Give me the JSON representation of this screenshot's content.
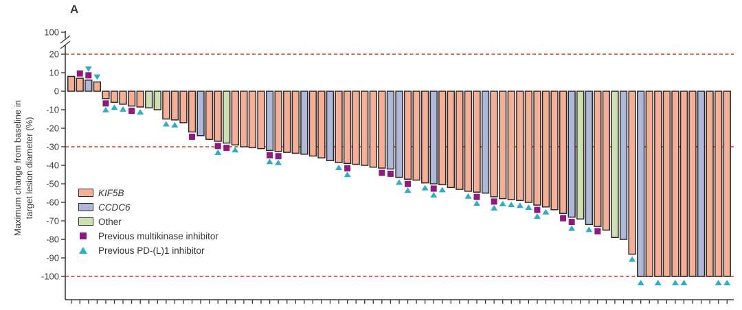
{
  "panel_label": "A",
  "ylabel": {
    "line1": "Maximum change from baseline in",
    "line2": "target lesion diameter (%)"
  },
  "legend": {
    "kif5b": "KIF5B",
    "ccdc6": "CCDC6",
    "other": "Other",
    "mki": "Previous multikinase inhibitor",
    "pd": "Previous PD-(L)1 inhibitor"
  },
  "colors": {
    "kif5b": "#f4b096",
    "ccdc6": "#aeb9d9",
    "other": "#cce0b2",
    "square": "#8f1a7e",
    "triangle": "#2baec6",
    "refline": "#d94f3d",
    "outline": "#2e2627",
    "axis": "#3b3b3b"
  },
  "chart_data": {
    "type": "bar",
    "subtype": "waterfall",
    "title": "",
    "xlabel": "",
    "ylabel": "Maximum change from baseline in target lesion diameter (%)",
    "y_ticks": [
      100,
      20,
      10,
      0,
      -10,
      -20,
      -30,
      -40,
      -50,
      -60,
      -70,
      -80,
      -90,
      -100
    ],
    "axis_break_between": [
      20,
      100
    ],
    "reference_lines": [
      20,
      -30,
      -100
    ],
    "grid": false,
    "legend_position": "inside-left",
    "groups": {
      "K": "KIF5B",
      "C": "CCDC6",
      "O": "Other"
    },
    "marker_codes": {
      "s": "Previous multikinase inhibitor",
      "t": "Previous PD-(L)1 inhibitor"
    },
    "bars": [
      [
        8,
        "K",
        ""
      ],
      [
        7,
        "K",
        "s"
      ],
      [
        6,
        "C",
        "st"
      ],
      [
        5,
        "K",
        "t"
      ],
      [
        -4,
        "K",
        "st"
      ],
      [
        -6,
        "K",
        "t"
      ],
      [
        -7,
        "K",
        "t"
      ],
      [
        -8,
        "K",
        "s"
      ],
      [
        -8.5,
        "K",
        "t"
      ],
      [
        -9,
        "O",
        ""
      ],
      [
        -10,
        "O",
        ""
      ],
      [
        -15,
        "K",
        "t"
      ],
      [
        -15.5,
        "K",
        "t"
      ],
      [
        -17,
        "K",
        ""
      ],
      [
        -22,
        "K",
        "s"
      ],
      [
        -24,
        "C",
        ""
      ],
      [
        -26,
        "K",
        ""
      ],
      [
        -27,
        "K",
        "st"
      ],
      [
        -28,
        "O",
        "s"
      ],
      [
        -29,
        "K",
        "t"
      ],
      [
        -30,
        "K",
        ""
      ],
      [
        -30.5,
        "K",
        ""
      ],
      [
        -31,
        "K",
        ""
      ],
      [
        -32,
        "C",
        "st"
      ],
      [
        -32.5,
        "K",
        "st"
      ],
      [
        -33,
        "K",
        ""
      ],
      [
        -33.5,
        "K",
        ""
      ],
      [
        -34,
        "C",
        ""
      ],
      [
        -35,
        "K",
        ""
      ],
      [
        -36,
        "K",
        ""
      ],
      [
        -37.5,
        "C",
        ""
      ],
      [
        -38.5,
        "K",
        "t"
      ],
      [
        -39,
        "K",
        "st"
      ],
      [
        -39.5,
        "K",
        ""
      ],
      [
        -40,
        "K",
        ""
      ],
      [
        -41,
        "K",
        ""
      ],
      [
        -41.5,
        "K",
        "s"
      ],
      [
        -42,
        "C",
        "s"
      ],
      [
        -46.5,
        "C",
        "t"
      ],
      [
        -47.5,
        "K",
        "st"
      ],
      [
        -48,
        "K",
        ""
      ],
      [
        -49.5,
        "K",
        "t"
      ],
      [
        -50,
        "C",
        "st"
      ],
      [
        -50.5,
        "K",
        "t"
      ],
      [
        -52,
        "K",
        ""
      ],
      [
        -53,
        "K",
        ""
      ],
      [
        -54,
        "K",
        "t"
      ],
      [
        -54.5,
        "K",
        "st"
      ],
      [
        -55,
        "C",
        ""
      ],
      [
        -57,
        "K",
        "st"
      ],
      [
        -58,
        "K",
        "t"
      ],
      [
        -58.5,
        "K",
        "t"
      ],
      [
        -59,
        "K",
        "t"
      ],
      [
        -60,
        "K",
        "t"
      ],
      [
        -61.5,
        "K",
        "st"
      ],
      [
        -62.5,
        "K",
        "t"
      ],
      [
        -64,
        "K",
        ""
      ],
      [
        -66,
        "K",
        "s"
      ],
      [
        -68,
        "C",
        "st"
      ],
      [
        -69,
        "O",
        ""
      ],
      [
        -72,
        "C",
        "t"
      ],
      [
        -73,
        "K",
        "s"
      ],
      [
        -75,
        "K",
        ""
      ],
      [
        -79,
        "O",
        ""
      ],
      [
        -80,
        "C",
        ""
      ],
      [
        -88,
        "K",
        "t"
      ],
      [
        -100,
        "C",
        "t"
      ],
      [
        -100,
        "K",
        ""
      ],
      [
        -100,
        "K",
        "t"
      ],
      [
        -100,
        "K",
        ""
      ],
      [
        -100,
        "K",
        "t"
      ],
      [
        -100,
        "K",
        "t"
      ],
      [
        -100,
        "K",
        ""
      ],
      [
        -100,
        "C",
        ""
      ],
      [
        -100,
        "K",
        ""
      ],
      [
        -100,
        "K",
        "t"
      ],
      [
        -100,
        "K",
        "t"
      ]
    ]
  }
}
